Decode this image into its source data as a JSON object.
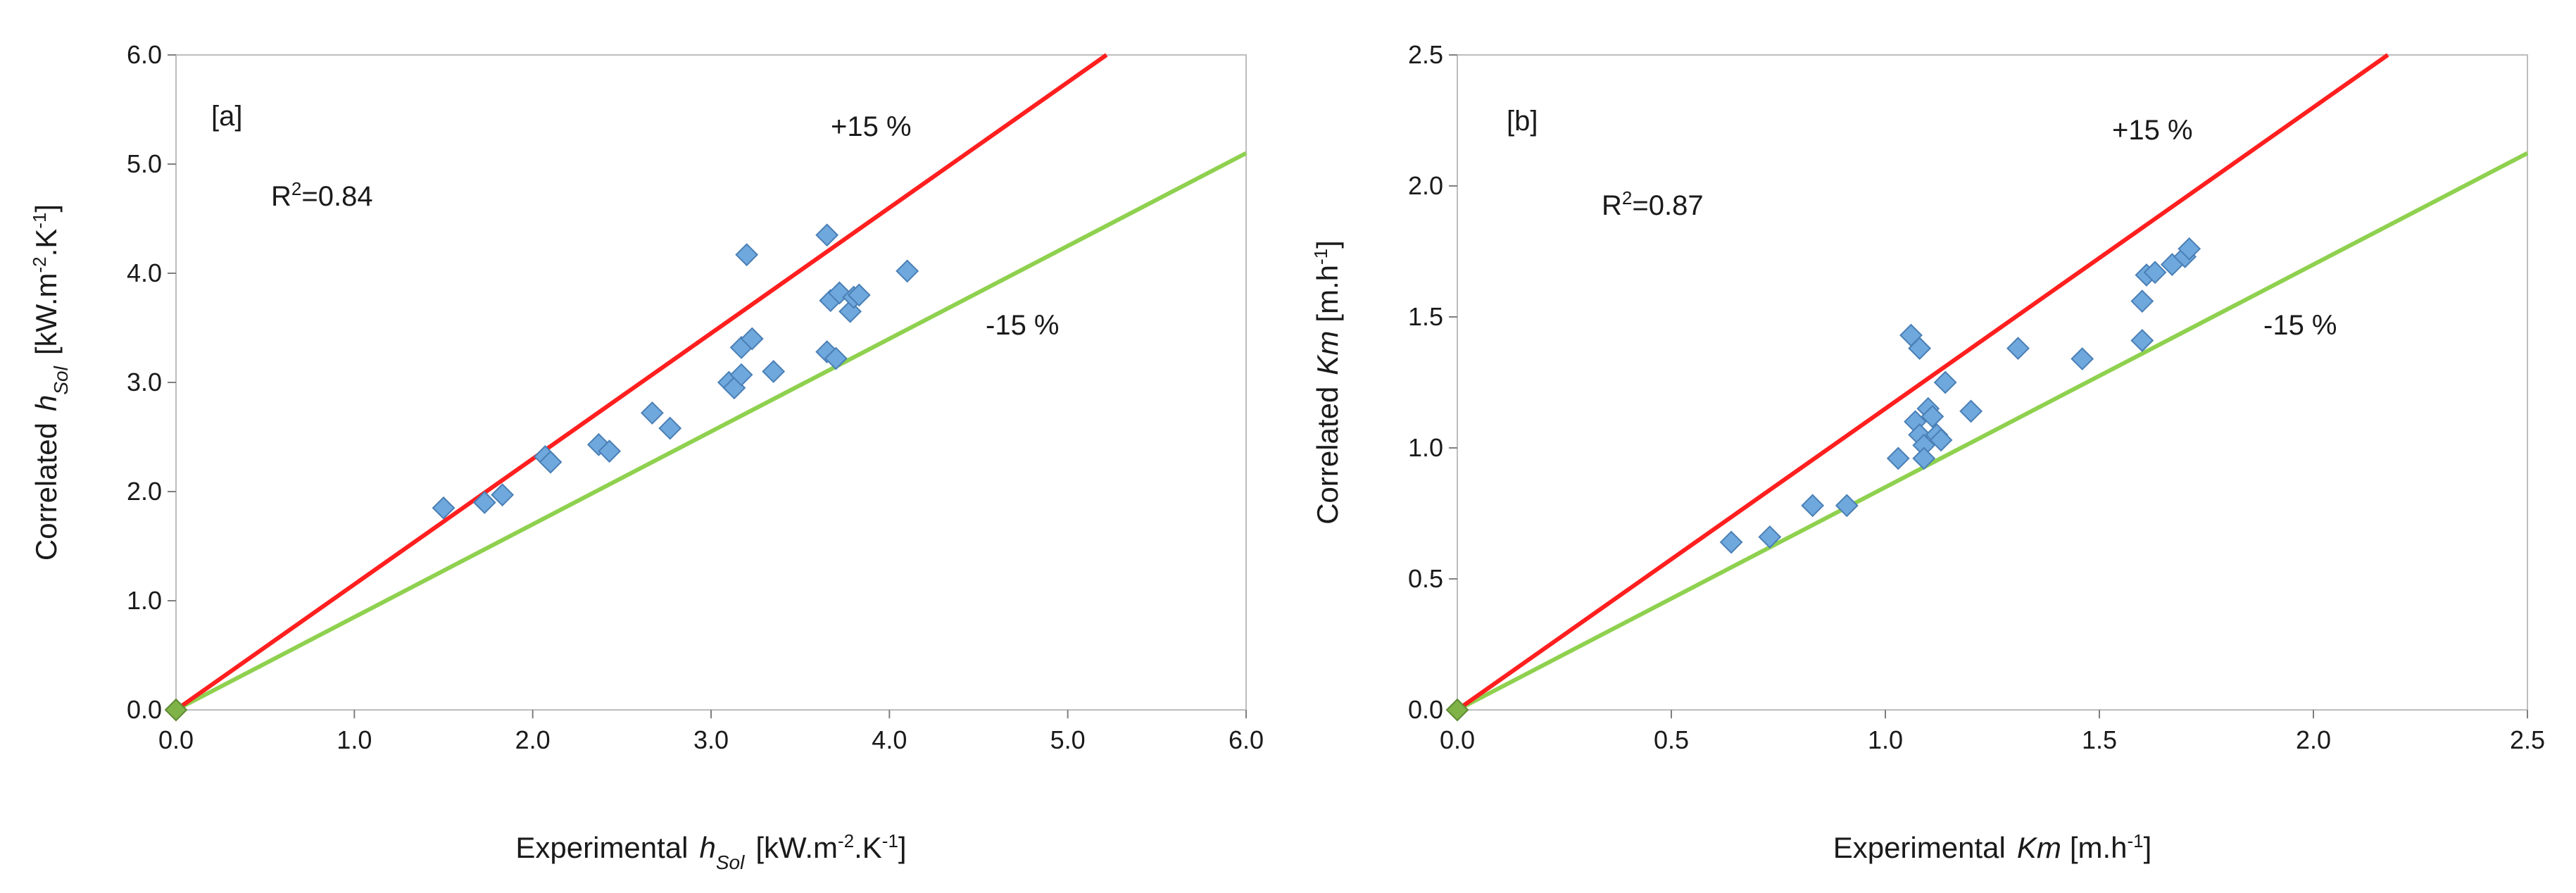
{
  "chart_data": [
    {
      "type": "scatter",
      "panel_label": "[a]",
      "r2_label": "R",
      "r2_sup": "2",
      "r2_value": "=0.84",
      "xlabel_prefix": "Experimental",
      "xlabel_var": "h",
      "xlabel_sub": "Sol",
      "xlabel_units_open": "[kW.m",
      "xlabel_units_exp1": "-2",
      "xlabel_units_mid": ".K",
      "xlabel_units_exp2": "-1",
      "xlabel_units_close": "]",
      "ylabel_prefix": "Correlated",
      "ylabel_var": "h",
      "ylabel_sub": "Sol",
      "ylabel_units_open": "[kW.m",
      "ylabel_units_exp1": "-2",
      "ylabel_units_mid": ".K",
      "ylabel_units_exp2": "-1",
      "ylabel_units_close": "]",
      "xlim": [
        0,
        6
      ],
      "ylim": [
        0,
        6
      ],
      "xticks": [
        "0.0",
        "1.0",
        "2.0",
        "3.0",
        "4.0",
        "5.0",
        "6.0"
      ],
      "yticks": [
        "0.0",
        "1.0",
        "2.0",
        "3.0",
        "4.0",
        "5.0",
        "6.0"
      ],
      "upper_line": {
        "label": "+15 %",
        "slope": 1.15,
        "color": "#ff1f1f"
      },
      "lower_line": {
        "label": "-15 %",
        "slope": 0.85,
        "color": "#8fd14f"
      },
      "marker_color": "#6fa8dc",
      "marker_edge": "#4a7fb5",
      "origin_marker_color": "#7fb347",
      "grid": false,
      "points": [
        [
          1.5,
          1.85
        ],
        [
          1.73,
          1.9
        ],
        [
          1.83,
          1.97
        ],
        [
          2.07,
          2.32
        ],
        [
          2.1,
          2.27
        ],
        [
          2.37,
          2.43
        ],
        [
          2.43,
          2.37
        ],
        [
          2.67,
          2.72
        ],
        [
          2.77,
          2.58
        ],
        [
          3.1,
          3.0
        ],
        [
          3.13,
          2.95
        ],
        [
          3.17,
          3.07
        ],
        [
          3.17,
          3.32
        ],
        [
          3.2,
          4.17
        ],
        [
          3.23,
          3.4
        ],
        [
          3.35,
          3.1
        ],
        [
          3.65,
          4.35
        ],
        [
          3.65,
          3.28
        ],
        [
          3.67,
          3.75
        ],
        [
          3.7,
          3.22
        ],
        [
          3.72,
          3.82
        ],
        [
          3.78,
          3.65
        ],
        [
          3.8,
          3.78
        ],
        [
          3.83,
          3.8
        ],
        [
          4.1,
          4.02
        ]
      ]
    },
    {
      "type": "scatter",
      "panel_label": "[b]",
      "r2_label": "R",
      "r2_sup": "2",
      "r2_value": "=0.87",
      "xlabel_prefix": "Experimental",
      "xlabel_var": "Km",
      "xlabel_units_open": "[m.h",
      "xlabel_units_exp": "-1",
      "xlabel_units_close": "]",
      "ylabel_prefix": "Correlated",
      "ylabel_var": "Km",
      "ylabel_units_open": "[m.h",
      "ylabel_units_exp": "-1",
      "ylabel_units_close": "]",
      "xlim": [
        0,
        2.5
      ],
      "ylim": [
        0,
        2.5
      ],
      "xticks": [
        "0.0",
        "0.5",
        "1.0",
        "1.5",
        "2.0",
        "2.5"
      ],
      "yticks": [
        "0.0",
        "0.5",
        "1.0",
        "1.5",
        "2.0",
        "2.5"
      ],
      "upper_line": {
        "label": "+15 %",
        "slope": 1.15,
        "color": "#ff1f1f"
      },
      "lower_line": {
        "label": "-15 %",
        "slope": 0.85,
        "color": "#8fd14f"
      },
      "marker_color": "#6fa8dc",
      "marker_edge": "#4a7fb5",
      "origin_marker_color": "#7fb347",
      "grid": false,
      "points": [
        [
          0.64,
          0.64
        ],
        [
          0.73,
          0.66
        ],
        [
          0.83,
          0.78
        ],
        [
          0.91,
          0.78
        ],
        [
          1.03,
          0.96
        ],
        [
          1.06,
          1.43
        ],
        [
          1.07,
          1.1
        ],
        [
          1.08,
          1.05
        ],
        [
          1.08,
          1.38
        ],
        [
          1.09,
          1.01
        ],
        [
          1.09,
          0.96
        ],
        [
          1.1,
          1.15
        ],
        [
          1.11,
          1.12
        ],
        [
          1.12,
          1.05
        ],
        [
          1.13,
          1.03
        ],
        [
          1.14,
          1.25
        ],
        [
          1.2,
          1.14
        ],
        [
          1.31,
          1.38
        ],
        [
          1.46,
          1.34
        ],
        [
          1.6,
          1.56
        ],
        [
          1.6,
          1.41
        ],
        [
          1.61,
          1.66
        ],
        [
          1.63,
          1.67
        ],
        [
          1.67,
          1.7
        ],
        [
          1.7,
          1.73
        ],
        [
          1.71,
          1.76
        ]
      ]
    }
  ]
}
